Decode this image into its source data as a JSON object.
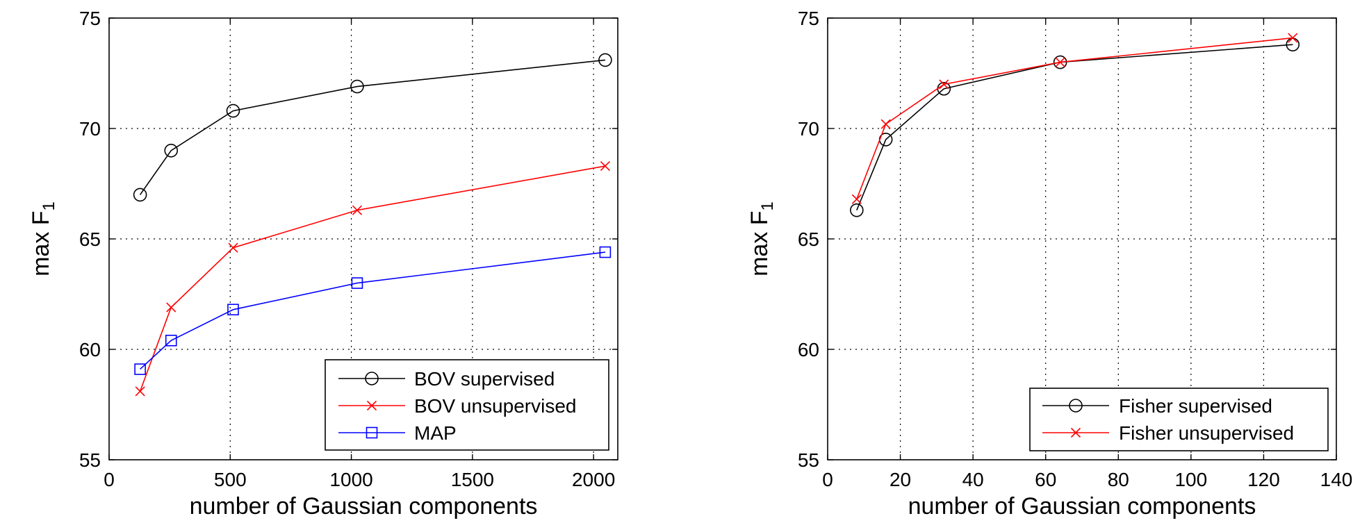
{
  "chart_data": [
    {
      "type": "line",
      "title": "",
      "xlabel": "number of Gaussian components",
      "ylabel": "max F",
      "ylabel_subscript": "1",
      "xlim": [
        0,
        2100
      ],
      "ylim": [
        55,
        75
      ],
      "xticks": [
        0,
        500,
        1000,
        1500,
        2000
      ],
      "yticks": [
        55,
        60,
        65,
        70,
        75
      ],
      "grid": true,
      "legend_position": "bottom-right",
      "series": [
        {
          "name": "BOV supervised",
          "color": "#000000",
          "marker": "circle",
          "x": [
            128,
            256,
            512,
            1024,
            2048
          ],
          "y": [
            67.0,
            69.0,
            70.8,
            71.9,
            73.1
          ]
        },
        {
          "name": "BOV unsupervised",
          "color": "#ff0000",
          "marker": "x",
          "x": [
            128,
            256,
            512,
            1024,
            2048
          ],
          "y": [
            58.1,
            61.9,
            64.6,
            66.3,
            68.3
          ]
        },
        {
          "name": "MAP",
          "color": "#0000ff",
          "marker": "square",
          "x": [
            128,
            256,
            512,
            1024,
            2048
          ],
          "y": [
            59.1,
            60.4,
            61.8,
            63.0,
            64.4
          ]
        }
      ]
    },
    {
      "type": "line",
      "title": "",
      "xlabel": "number of Gaussian components",
      "ylabel": "max F",
      "ylabel_subscript": "1",
      "xlim": [
        0,
        140
      ],
      "ylim": [
        55,
        75
      ],
      "xticks": [
        0,
        20,
        40,
        60,
        80,
        100,
        120,
        140
      ],
      "yticks": [
        55,
        60,
        65,
        70,
        75
      ],
      "grid": true,
      "legend_position": "bottom-right",
      "series": [
        {
          "name": "Fisher supervised",
          "color": "#000000",
          "marker": "circle",
          "x": [
            8,
            16,
            32,
            64,
            128
          ],
          "y": [
            66.3,
            69.5,
            71.8,
            73.0,
            73.8
          ]
        },
        {
          "name": "Fisher unsupervised",
          "color": "#ff0000",
          "marker": "x",
          "x": [
            8,
            16,
            32,
            64,
            128
          ],
          "y": [
            66.8,
            70.2,
            72.0,
            73.0,
            74.1
          ]
        }
      ]
    }
  ]
}
